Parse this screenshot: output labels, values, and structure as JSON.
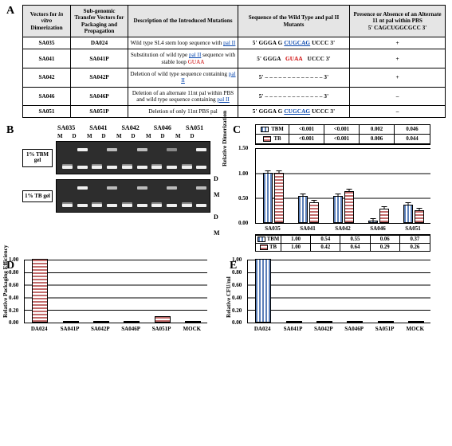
{
  "panelA": {
    "headers": [
      "Vectors for <span class='ital'>in vitro</span> Dimerization",
      "Sub-genomic Transfer Vectors for Packaging and Propagation",
      "Description of the Introduced Mutations",
      "Sequence of the Wild Type and pal II Mutants",
      "Presence or Absence of an Alternate 11 nt pal within PBS<br>5' CAGCUGGCGCC 3'"
    ],
    "rows": [
      {
        "v": "SA035",
        "t": "DA024",
        "desc": "Wild type SL4 stem loop sequence with <span class='blue-u'>pal&nbsp;II</span>",
        "seq": "5' GGGA G <span class='blue-u'>CUGCAG</span> UCCC 3'",
        "pm": "+"
      },
      {
        "v": "SA041",
        "t": "SA041P",
        "desc": "Substitution of wild type <span class='blue-u'>pal II</span> sequence with stable loop <span class='red'>GUAA</span>",
        "seq": "5' GGGA &nbsp;&nbsp;<span class='red'>GUAA</span>&nbsp;&nbsp; UCCC 3'",
        "pm": "+"
      },
      {
        "v": "SA042",
        "t": "SA042P",
        "desc": "Deletion of wild type sequence containing <span class='blue-u'>pal II</span>",
        "seq": "5' – – – – – – – – – – – – – 3'",
        "pm": "+"
      },
      {
        "v": "SA046",
        "t": "SA046P",
        "desc": "Deletion of an alternate 11nt pal within PBS and wild type sequence containing <span class='blue-u'>pal&nbsp;II</span>",
        "seq": "5' – – – – – – – – – – – – – 3'",
        "pm": "–"
      },
      {
        "v": "SA051",
        "t": "SA051P",
        "desc": "Deletion of only 11nt PBS pal",
        "seq": "5' GGGA G <span class='blue-u'>CUGCAG</span> UCCC 3'",
        "pm": "–"
      }
    ]
  },
  "panelB": {
    "samples": [
      "SA035",
      "SA041",
      "SA042",
      "SA046",
      "SA051"
    ],
    "md": [
      "M",
      "D",
      "M",
      "D",
      "M",
      "D",
      "M",
      "D",
      "M",
      "D"
    ],
    "gel1_label": "1%\nTBM gel",
    "gel2_label": "1%\nTB gel",
    "side_D": "D",
    "side_M": "M"
  },
  "panelC": {
    "pvals_tbm": [
      "<0.001",
      "<0.001",
      "<0.001",
      "0.002",
      "0.046"
    ],
    "pvals_tb": [
      "<0.001",
      "<0.001",
      "<0.001",
      "0.006",
      "0.044"
    ],
    "tbm_label": "TBM",
    "tb_label": "TB",
    "ylabel": "Relative Dimerization",
    "ymax": 1.5,
    "yticks": [
      "0.00",
      "0.50",
      "1.00",
      "1.50"
    ],
    "cats": [
      "SA035",
      "SA041",
      "SA042",
      "SA046",
      "SA051"
    ],
    "tbm": [
      1.0,
      0.54,
      0.55,
      0.06,
      0.37
    ],
    "tb": [
      1.0,
      0.42,
      0.64,
      0.29,
      0.26
    ],
    "err": 0.06
  },
  "panelD": {
    "ylabel": "Relative Packaging Efficiency",
    "yticks": [
      "0.00",
      "0.20",
      "0.40",
      "0.60",
      "0.80",
      "1.00"
    ],
    "cats": [
      "DA024",
      "SA041P",
      "SA042P",
      "SA046P",
      "SA051P",
      "MOCK"
    ],
    "vals": [
      1.0,
      0.02,
      0.015,
      0.015,
      0.1,
      0.0
    ],
    "err": [
      0.0,
      0.01,
      0.01,
      0.01,
      0.02,
      0.0
    ],
    "color": "red"
  },
  "panelE": {
    "ylabel": "Relative CFU/ml",
    "yticks": [
      "0.00",
      "0.20",
      "0.40",
      "0.60",
      "0.80",
      "1.00"
    ],
    "cats": [
      "DA024",
      "SA041P",
      "SA042P",
      "SA046P",
      "SA051P",
      "MOCK"
    ],
    "vals": [
      1.0,
      0.008,
      0.006,
      0.006,
      0.006,
      0.0
    ],
    "err": [
      0.0,
      0.005,
      0.005,
      0.005,
      0.005,
      0.0
    ],
    "color": "blue"
  },
  "colors": {
    "tbm": "#5b7fb8",
    "tb": "#c26b6b"
  }
}
